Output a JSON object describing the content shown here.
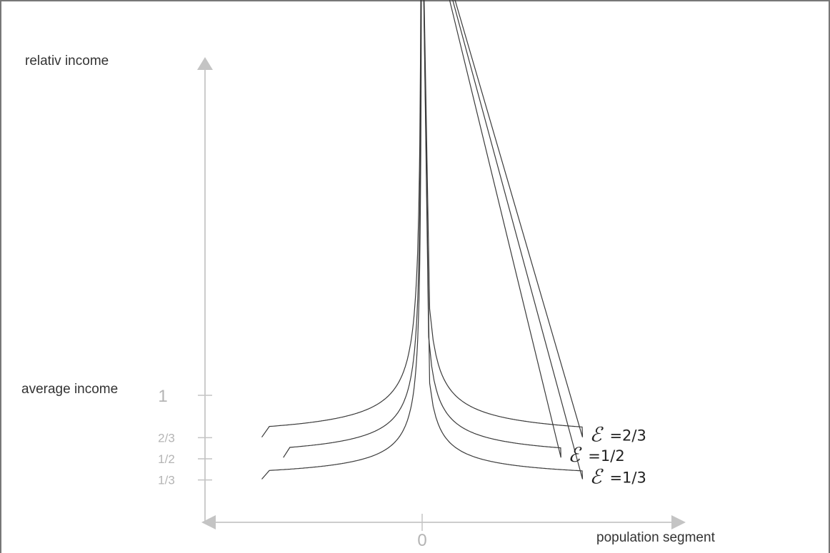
{
  "chart_data": {
    "type": "line",
    "ylabel": "relativ income",
    "xlabel": "population segment",
    "reference_label": "average income",
    "y_ticks": [
      {
        "value": 1,
        "label": "1"
      },
      {
        "value": 0.6667,
        "label": "2/3"
      },
      {
        "value": 0.5,
        "label": "1/2"
      },
      {
        "value": 0.3333,
        "label": "1/3"
      }
    ],
    "x_ticks": [
      {
        "value": 0,
        "label": "0"
      }
    ],
    "xlim": [
      -1.05,
      1.15
    ],
    "ylim": [
      0,
      5.3
    ],
    "series": [
      {
        "symbol": "ℰ",
        "value_label": "=2/3",
        "floor": 0.6667,
        "x": [
          -0.67,
          -0.5,
          -0.3,
          -0.15,
          -0.05,
          0,
          0.05,
          0.15,
          0.3,
          0.5,
          0.67
        ],
        "y": [
          0.67,
          0.72,
          0.82,
          0.98,
          1.45,
          5.0,
          1.45,
          0.98,
          0.82,
          0.72,
          0.67
        ]
      },
      {
        "symbol": "ℰ",
        "value_label": "=1/2",
        "floor": 0.5,
        "x": [
          -0.58,
          -0.4,
          -0.25,
          -0.12,
          -0.04,
          0,
          0.04,
          0.12,
          0.25,
          0.4,
          0.58
        ],
        "y": [
          0.51,
          0.56,
          0.65,
          0.82,
          1.25,
          5.0,
          1.25,
          0.82,
          0.65,
          0.56,
          0.51
        ]
      },
      {
        "symbol": "ℰ",
        "value_label": "=1/3",
        "floor": 0.3333,
        "x": [
          -0.67,
          -0.45,
          -0.25,
          -0.12,
          -0.04,
          0,
          0.04,
          0.12,
          0.25,
          0.45,
          0.67
        ],
        "y": [
          0.34,
          0.38,
          0.46,
          0.62,
          1.05,
          5.0,
          1.05,
          0.62,
          0.46,
          0.38,
          0.34
        ]
      }
    ],
    "grid": false,
    "legend": "none",
    "colors": {
      "axis": "#cccccc",
      "tick_label": "#b4b4b4",
      "curve": "#3a3a3a",
      "text": "#333333"
    }
  }
}
